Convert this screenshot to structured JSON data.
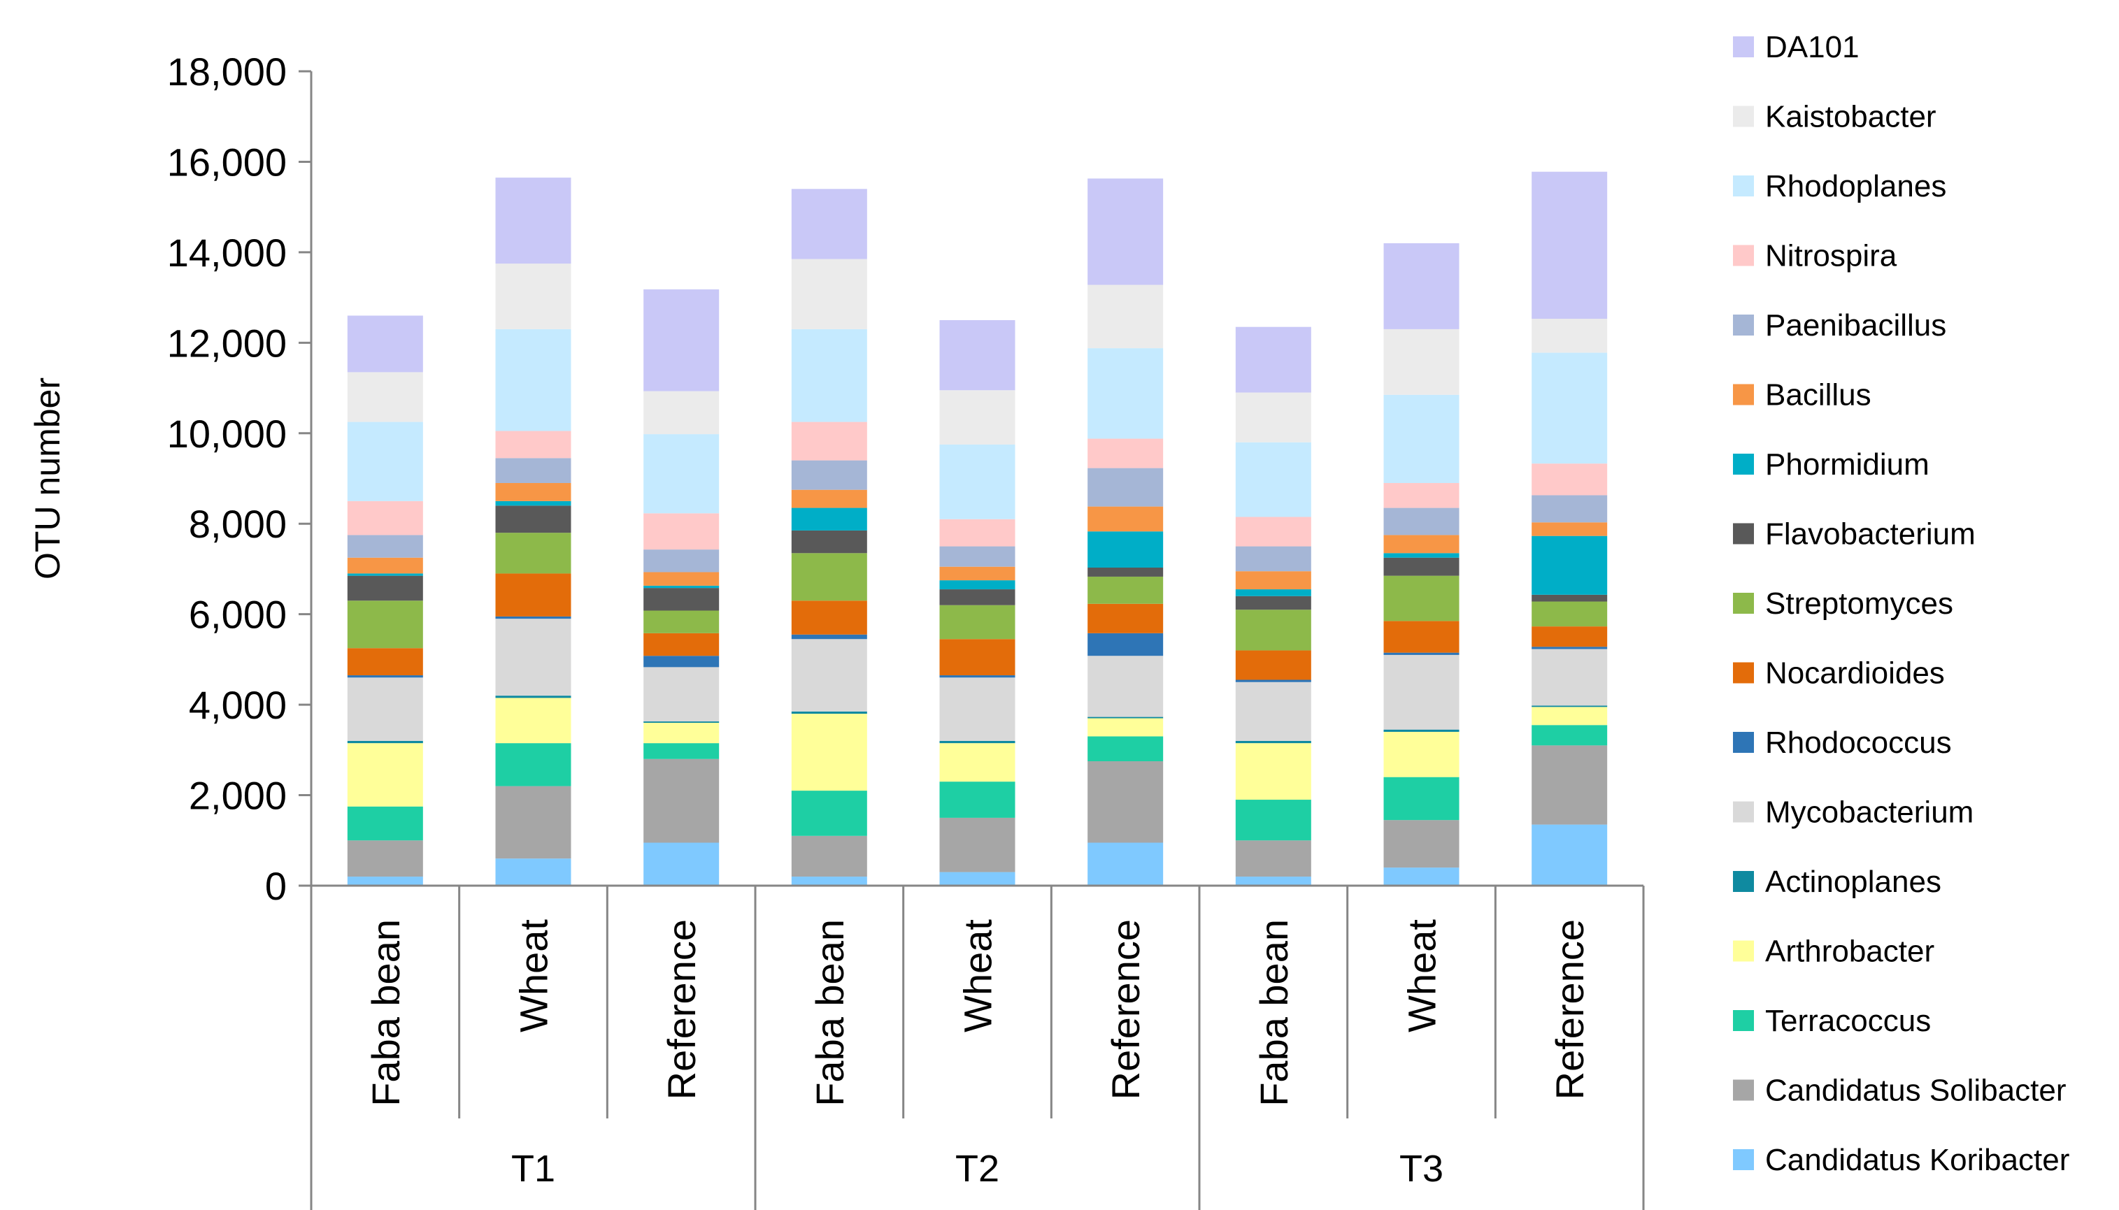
{
  "chart_data": {
    "type": "stacked-bar",
    "title": "",
    "xlabel": "",
    "ylabel": "OTU number",
    "ylim": [
      0,
      18000
    ],
    "yticks": [
      0,
      2000,
      4000,
      6000,
      8000,
      10000,
      12000,
      14000,
      16000,
      18000
    ],
    "ytick_labels": [
      "0",
      "2,000",
      "4,000",
      "6,000",
      "8,000",
      "10,000",
      "12,000",
      "14,000",
      "16,000",
      "18,000"
    ],
    "categories": [
      "Faba bean",
      "Wheat",
      "Reference",
      "Faba bean",
      "Wheat",
      "Reference",
      "Faba bean",
      "Wheat",
      "Reference"
    ],
    "groups": [
      {
        "label": "T1",
        "span": 3
      },
      {
        "label": "T2",
        "span": 3
      },
      {
        "label": "T3",
        "span": 3
      }
    ],
    "legend_position": "right",
    "series": [
      {
        "name": "Candidatus Koribacter",
        "color": "#7fc9ff",
        "values": [
          200,
          600,
          950,
          200,
          300,
          950,
          200,
          400,
          1350
        ]
      },
      {
        "name": "Candidatus Solibacter",
        "color": "#a6a6a6",
        "values": [
          800,
          1600,
          1850,
          900,
          1200,
          1800,
          800,
          1050,
          1750
        ]
      },
      {
        "name": "Terracoccus",
        "color": "#1ecfa4",
        "values": [
          750,
          950,
          350,
          1000,
          800,
          550,
          900,
          950,
          450
        ]
      },
      {
        "name": "Arthrobacter",
        "color": "#ffff99",
        "values": [
          1400,
          1000,
          450,
          1700,
          850,
          400,
          1250,
          1000,
          400
        ]
      },
      {
        "name": "Actinoplanes",
        "color": "#0f8aa0",
        "values": [
          50,
          50,
          30,
          50,
          50,
          30,
          50,
          50,
          30
        ]
      },
      {
        "name": "Mycobacterium",
        "color": "#d9d9d9",
        "values": [
          1400,
          1700,
          1200,
          1600,
          1400,
          1350,
          1300,
          1650,
          1250
        ]
      },
      {
        "name": "Rhodococcus",
        "color": "#2e75b6",
        "values": [
          50,
          50,
          250,
          100,
          50,
          500,
          50,
          50,
          50
        ]
      },
      {
        "name": "Nocardioides",
        "color": "#e36c0a",
        "values": [
          600,
          950,
          500,
          750,
          800,
          650,
          650,
          700,
          450
        ]
      },
      {
        "name": "Streptomyces",
        "color": "#8db94a",
        "values": [
          1050,
          900,
          500,
          1050,
          750,
          600,
          900,
          1000,
          550
        ]
      },
      {
        "name": "Flavobacterium",
        "color": "#595959",
        "values": [
          550,
          600,
          500,
          500,
          350,
          200,
          300,
          400,
          150
        ]
      },
      {
        "name": "Phormidium",
        "color": "#00aec7",
        "values": [
          50,
          100,
          50,
          500,
          200,
          800,
          150,
          100,
          1300
        ]
      },
      {
        "name": "Bacillus",
        "color": "#f79646",
        "values": [
          350,
          400,
          300,
          400,
          300,
          550,
          400,
          400,
          300
        ]
      },
      {
        "name": "Paenibacillus",
        "color": "#a5b6d6",
        "values": [
          500,
          550,
          500,
          650,
          450,
          850,
          550,
          600,
          600
        ]
      },
      {
        "name": "Nitrospira",
        "color": "#ffc9c9",
        "values": [
          750,
          600,
          800,
          850,
          600,
          650,
          650,
          550,
          700
        ]
      },
      {
        "name": "Rhodoplanes",
        "color": "#c5eaff",
        "values": [
          1750,
          2250,
          1750,
          2050,
          1650,
          2000,
          1650,
          1950,
          2450
        ]
      },
      {
        "name": "Kaistobacter",
        "color": "#ebebeb",
        "values": [
          1100,
          1450,
          950,
          1550,
          1200,
          1400,
          1100,
          1450,
          750
        ]
      },
      {
        "name": "DA101",
        "color": "#c9c8f7",
        "values": [
          1250,
          1900,
          2250,
          1550,
          1550,
          2350,
          1450,
          1900,
          3250
        ]
      }
    ]
  }
}
